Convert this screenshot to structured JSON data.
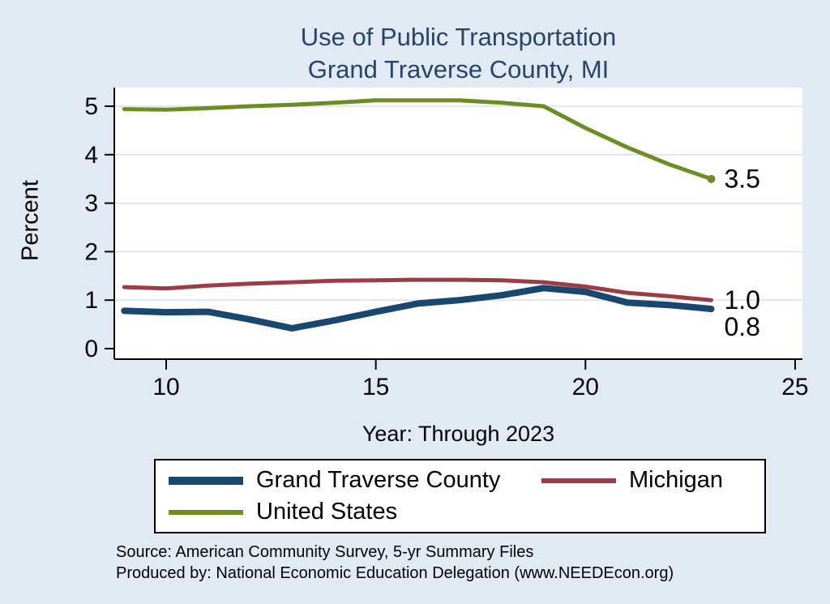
{
  "title": {
    "line1": "Use of Public Transportation",
    "line2": "Grand Traverse County, MI"
  },
  "axes": {
    "y_title": "Percent",
    "x_title": "Year: Through 2023"
  },
  "notes": {
    "line1": "Source: American Community Survey, 5-yr Summary Files",
    "line2": "Produced by: National Economic Education Delegation (www.NEEDEcon.org)"
  },
  "chart_data": {
    "type": "line",
    "title": "Use of Public Transportation Grand Traverse County, MI",
    "xlabel": "Year: Through 2023",
    "ylabel": "Percent",
    "x": [
      9,
      10,
      11,
      12,
      13,
      14,
      15,
      16,
      17,
      18,
      19,
      20,
      21,
      22,
      23
    ],
    "series": [
      {
        "name": "Grand Traverse County",
        "color": "#1a476f",
        "line_width": 8,
        "values": [
          0.78,
          0.75,
          0.76,
          0.6,
          0.42,
          0.58,
          0.76,
          0.93,
          1.0,
          1.1,
          1.25,
          1.17,
          0.95,
          0.9,
          0.82
        ],
        "end_label": "0.8",
        "end_label_dy": 22,
        "end_marker": false
      },
      {
        "name": "Michigan",
        "color": "#9d3c44",
        "line_width": 5,
        "values": [
          1.27,
          1.24,
          1.3,
          1.34,
          1.37,
          1.4,
          1.41,
          1.42,
          1.42,
          1.41,
          1.37,
          1.28,
          1.15,
          1.08,
          1.0
        ],
        "end_label": "1.0",
        "end_label_dy": 0,
        "end_marker": false
      },
      {
        "name": "United States",
        "color": "#6b8e23",
        "line_width": 5,
        "values": [
          4.94,
          4.93,
          4.96,
          5.0,
          5.03,
          5.07,
          5.12,
          5.12,
          5.12,
          5.07,
          5.0,
          4.55,
          4.15,
          3.8,
          3.5
        ],
        "end_label": "3.5",
        "end_label_dy": 0,
        "end_marker": true
      }
    ],
    "x_ticks": [
      10,
      15,
      20,
      25
    ],
    "y_ticks": [
      0,
      1,
      2,
      3,
      4,
      5
    ],
    "xlim": [
      8.75,
      25.2
    ],
    "ylim": [
      -0.2,
      5.4
    ],
    "grid": "horizontal",
    "legend_position": "bottom"
  }
}
